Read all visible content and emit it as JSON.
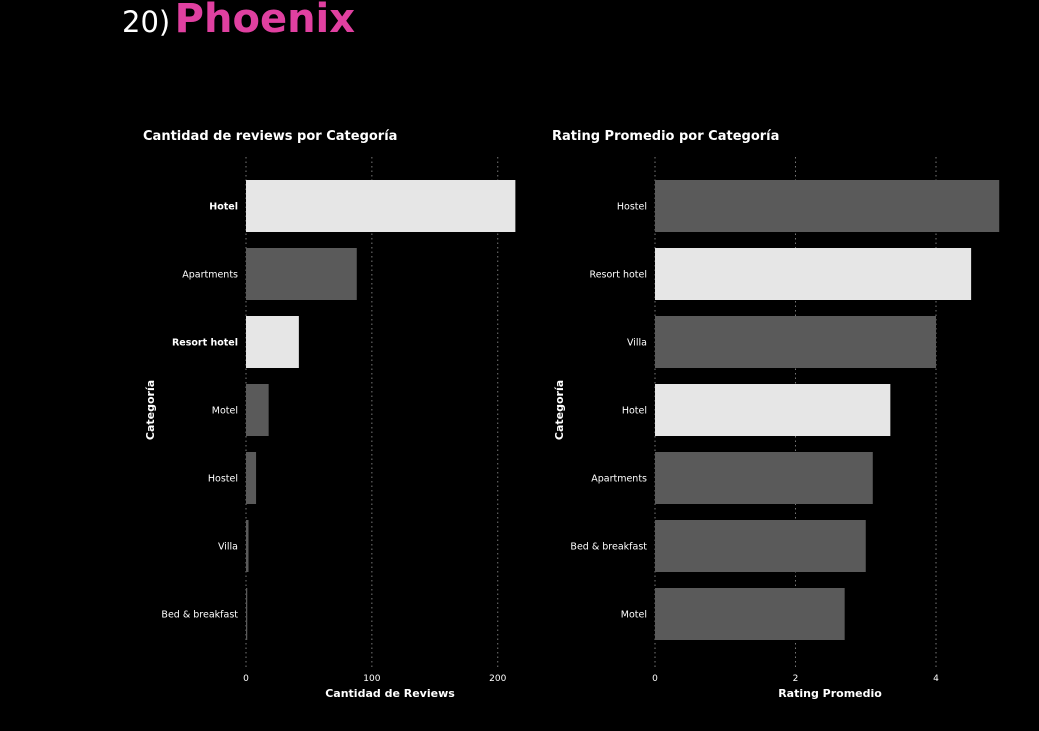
{
  "heading": {
    "number": "20)",
    "city": "Phoenix",
    "city_color": "#e040a0"
  },
  "colors": {
    "highlight": "#e6e6e6",
    "base": "#5a5a5a",
    "grid": "#777777",
    "text": "#ffffff"
  },
  "chart_data": [
    {
      "type": "bar",
      "orientation": "horizontal",
      "title": "Cantidad de reviews por Categoría",
      "xlabel": "Cantidad de Reviews",
      "ylabel": "Categoría",
      "categories": [
        "Hotel",
        "Apartments",
        "Resort hotel",
        "Motel",
        "Hostel",
        "Villa",
        "Bed & breakfast"
      ],
      "values": [
        214,
        88,
        42,
        18,
        8,
        2,
        1
      ],
      "highlighted": [
        "Hotel",
        "Resort hotel"
      ],
      "xlim": [
        0,
        230
      ],
      "xticks": [
        0,
        100,
        200
      ],
      "grid": "vertical dotted"
    },
    {
      "type": "bar",
      "orientation": "horizontal",
      "title": "Rating Promedio por Categoría",
      "xlabel": "Rating Promedio",
      "ylabel": "Categoría",
      "categories": [
        "Hostel",
        "Resort hotel",
        "Villa",
        "Hotel",
        "Apartments",
        "Bed & breakfast",
        "Motel"
      ],
      "values": [
        4.9,
        4.5,
        4.0,
        3.35,
        3.1,
        3.0,
        2.7
      ],
      "highlighted": [
        "Resort hotel",
        "Hotel"
      ],
      "xlim": [
        0,
        5
      ],
      "xticks": [
        0,
        2,
        4
      ],
      "grid": "vertical dotted"
    }
  ]
}
